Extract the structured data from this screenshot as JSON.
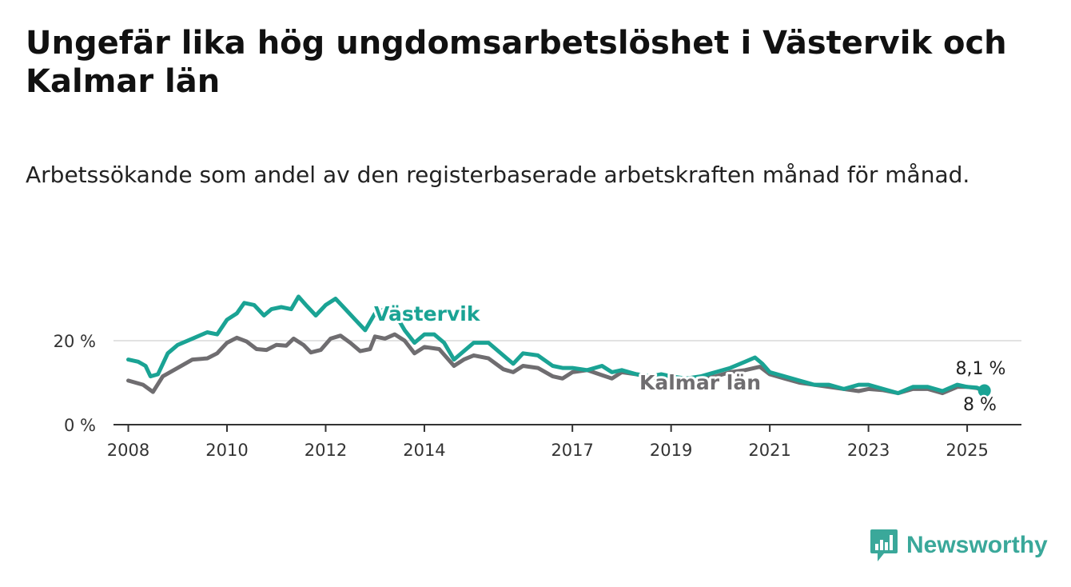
{
  "title": "Ungefär lika hög ungdomsarbetslöshet i Västervik och Kalmar län",
  "subtitle": "Arbetssökande som andel av den registerbaserade arbetskraften månad för månad.",
  "brand": {
    "name": "Newsworthy",
    "icon": "bar-chart-speech-bubble-icon",
    "color": "#3aa89a"
  },
  "chart_data": {
    "type": "line",
    "x_unit": "year",
    "xlim": [
      2007.7,
      2026.1
    ],
    "ylim": [
      0,
      36
    ],
    "grid": true,
    "x_ticks": [
      {
        "value": 2008,
        "label": "2008"
      },
      {
        "value": 2010,
        "label": "2010"
      },
      {
        "value": 2012,
        "label": "2012"
      },
      {
        "value": 2014,
        "label": "2014"
      },
      {
        "value": 2017,
        "label": "2017"
      },
      {
        "value": 2019,
        "label": "2019"
      },
      {
        "value": 2021,
        "label": "2021"
      },
      {
        "value": 2023,
        "label": "2023"
      },
      {
        "value": 2025,
        "label": "2025"
      }
    ],
    "y_ticks": [
      {
        "value": 0,
        "label": "0 %"
      },
      {
        "value": 20,
        "label": "20 %"
      }
    ],
    "series": [
      {
        "name": "Kalmar län",
        "color": "#6f6d70",
        "end_label": "8 %",
        "points": [
          [
            2008.0,
            10.5
          ],
          [
            2008.3,
            9.5
          ],
          [
            2008.5,
            7.8
          ],
          [
            2008.7,
            11.5
          ],
          [
            2009.0,
            13.5
          ],
          [
            2009.3,
            15.5
          ],
          [
            2009.6,
            15.8
          ],
          [
            2009.8,
            17.0
          ],
          [
            2010.0,
            19.5
          ],
          [
            2010.2,
            20.7
          ],
          [
            2010.4,
            19.8
          ],
          [
            2010.6,
            18.0
          ],
          [
            2010.8,
            17.8
          ],
          [
            2011.0,
            19.0
          ],
          [
            2011.2,
            18.8
          ],
          [
            2011.35,
            20.5
          ],
          [
            2011.55,
            19.0
          ],
          [
            2011.7,
            17.2
          ],
          [
            2011.9,
            17.8
          ],
          [
            2012.1,
            20.5
          ],
          [
            2012.3,
            21.2
          ],
          [
            2012.5,
            19.5
          ],
          [
            2012.7,
            17.5
          ],
          [
            2012.9,
            18.0
          ],
          [
            2013.0,
            21.0
          ],
          [
            2013.2,
            20.5
          ],
          [
            2013.4,
            21.5
          ],
          [
            2013.6,
            20.0
          ],
          [
            2013.8,
            17.0
          ],
          [
            2014.0,
            18.5
          ],
          [
            2014.3,
            18.0
          ],
          [
            2014.6,
            14.0
          ],
          [
            2014.8,
            15.5
          ],
          [
            2015.0,
            16.5
          ],
          [
            2015.3,
            15.8
          ],
          [
            2015.6,
            13.2
          ],
          [
            2015.8,
            12.5
          ],
          [
            2016.0,
            14.0
          ],
          [
            2016.3,
            13.5
          ],
          [
            2016.6,
            11.5
          ],
          [
            2016.8,
            11.0
          ],
          [
            2017.0,
            12.5
          ],
          [
            2017.3,
            13.0
          ],
          [
            2017.6,
            11.8
          ],
          [
            2017.8,
            11.0
          ],
          [
            2018.0,
            12.5
          ],
          [
            2018.3,
            12.0
          ],
          [
            2018.5,
            11.5
          ],
          [
            2018.8,
            11.0
          ],
          [
            2019.0,
            10.5
          ],
          [
            2019.3,
            10.8
          ],
          [
            2019.6,
            11.2
          ],
          [
            2019.9,
            11.5
          ],
          [
            2020.2,
            12.5
          ],
          [
            2020.5,
            13.0
          ],
          [
            2020.8,
            13.8
          ],
          [
            2021.0,
            12.0
          ],
          [
            2021.3,
            11.0
          ],
          [
            2021.6,
            10.0
          ],
          [
            2021.9,
            9.5
          ],
          [
            2022.2,
            9.0
          ],
          [
            2022.5,
            8.5
          ],
          [
            2022.8,
            8.0
          ],
          [
            2023.0,
            8.5
          ],
          [
            2023.3,
            8.2
          ],
          [
            2023.6,
            7.5
          ],
          [
            2023.9,
            8.5
          ],
          [
            2024.2,
            8.5
          ],
          [
            2024.5,
            7.5
          ],
          [
            2024.8,
            9.0
          ],
          [
            2025.0,
            9.0
          ],
          [
            2025.2,
            8.7
          ],
          [
            2025.35,
            8.0
          ]
        ]
      },
      {
        "name": "Västervik",
        "color": "#1aa394",
        "end_label": "8,1 %",
        "points": [
          [
            2008.0,
            15.5
          ],
          [
            2008.2,
            15.0
          ],
          [
            2008.35,
            14.0
          ],
          [
            2008.45,
            11.5
          ],
          [
            2008.6,
            12.0
          ],
          [
            2008.8,
            17.0
          ],
          [
            2009.0,
            19.0
          ],
          [
            2009.3,
            20.5
          ],
          [
            2009.6,
            22.0
          ],
          [
            2009.8,
            21.5
          ],
          [
            2010.0,
            25.0
          ],
          [
            2010.2,
            26.5
          ],
          [
            2010.35,
            29.0
          ],
          [
            2010.55,
            28.5
          ],
          [
            2010.75,
            26.0
          ],
          [
            2010.9,
            27.5
          ],
          [
            2011.1,
            28.0
          ],
          [
            2011.3,
            27.5
          ],
          [
            2011.45,
            30.5
          ],
          [
            2011.6,
            28.5
          ],
          [
            2011.8,
            26.0
          ],
          [
            2012.0,
            28.5
          ],
          [
            2012.2,
            30.0
          ],
          [
            2012.4,
            27.5
          ],
          [
            2012.6,
            25.0
          ],
          [
            2012.8,
            22.5
          ],
          [
            2013.0,
            26.5
          ],
          [
            2013.2,
            27.5
          ],
          [
            2013.4,
            26.5
          ],
          [
            2013.6,
            22.5
          ],
          [
            2013.8,
            19.5
          ],
          [
            2014.0,
            21.5
          ],
          [
            2014.2,
            21.5
          ],
          [
            2014.4,
            19.5
          ],
          [
            2014.6,
            15.5
          ],
          [
            2014.8,
            17.5
          ],
          [
            2015.0,
            19.5
          ],
          [
            2015.3,
            19.5
          ],
          [
            2015.6,
            16.5
          ],
          [
            2015.8,
            14.5
          ],
          [
            2016.0,
            17.0
          ],
          [
            2016.3,
            16.5
          ],
          [
            2016.6,
            14.0
          ],
          [
            2016.8,
            13.5
          ],
          [
            2017.0,
            13.5
          ],
          [
            2017.3,
            13.0
          ],
          [
            2017.6,
            14.0
          ],
          [
            2017.8,
            12.5
          ],
          [
            2018.0,
            13.0
          ],
          [
            2018.3,
            12.0
          ],
          [
            2018.6,
            11.5
          ],
          [
            2018.8,
            12.0
          ],
          [
            2019.0,
            11.5
          ],
          [
            2019.3,
            11.0
          ],
          [
            2019.6,
            11.5
          ],
          [
            2019.9,
            12.5
          ],
          [
            2020.2,
            13.5
          ],
          [
            2020.5,
            15.0
          ],
          [
            2020.7,
            16.0
          ],
          [
            2020.85,
            14.5
          ],
          [
            2021.0,
            12.5
          ],
          [
            2021.3,
            11.5
          ],
          [
            2021.6,
            10.5
          ],
          [
            2021.9,
            9.5
          ],
          [
            2022.2,
            9.5
          ],
          [
            2022.5,
            8.5
          ],
          [
            2022.8,
            9.5
          ],
          [
            2023.0,
            9.5
          ],
          [
            2023.3,
            8.5
          ],
          [
            2023.6,
            7.5
          ],
          [
            2023.9,
            9.0
          ],
          [
            2024.2,
            9.0
          ],
          [
            2024.5,
            8.0
          ],
          [
            2024.8,
            9.5
          ],
          [
            2025.0,
            9.0
          ],
          [
            2025.2,
            8.8
          ],
          [
            2025.35,
            8.1
          ]
        ]
      }
    ]
  }
}
